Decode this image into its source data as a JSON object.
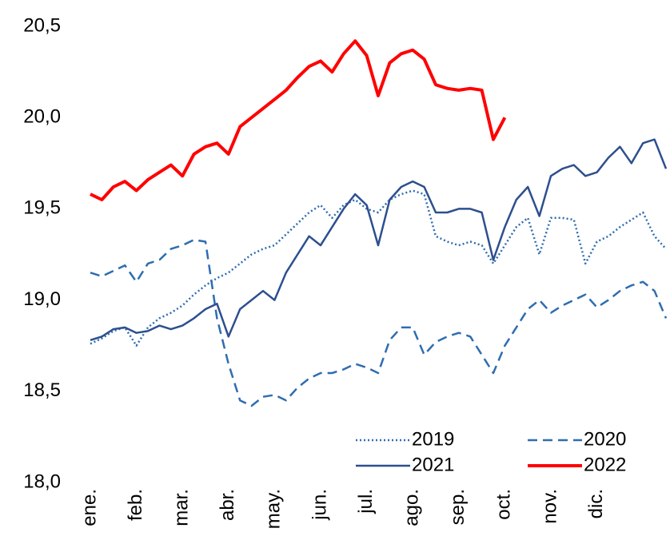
{
  "chart_data": {
    "type": "line",
    "categories": [
      "ene.",
      null,
      null,
      null,
      "feb.",
      null,
      null,
      null,
      "mar.",
      null,
      null,
      null,
      "abr.",
      null,
      null,
      null,
      "may.",
      null,
      null,
      null,
      "jun.",
      null,
      null,
      null,
      "jul.",
      null,
      null,
      null,
      "ago.",
      null,
      null,
      null,
      "sep.",
      null,
      null,
      null,
      "oct.",
      null,
      null,
      null,
      "nov.",
      null,
      null,
      null,
      "dic.",
      null,
      null,
      null,
      null,
      null,
      null
    ],
    "ylim": [
      18.0,
      20.5
    ],
    "yticks": [
      {
        "value": 18.0,
        "label": "18,0"
      },
      {
        "value": 18.5,
        "label": "18,5"
      },
      {
        "value": 19.0,
        "label": "19,0"
      },
      {
        "value": 19.5,
        "label": "19,5"
      },
      {
        "value": 20.0,
        "label": "20,0"
      },
      {
        "value": 20.5,
        "label": "20,5"
      }
    ],
    "series": [
      {
        "name": "2019",
        "color": "#2e6db0",
        "style": "dotted",
        "line_width": 2.5,
        "values": [
          18.76,
          18.79,
          18.83,
          18.85,
          18.75,
          18.85,
          18.9,
          18.93,
          18.97,
          19.03,
          19.08,
          19.12,
          19.15,
          19.2,
          19.25,
          19.28,
          19.3,
          19.36,
          19.42,
          19.48,
          19.52,
          19.45,
          19.52,
          19.55,
          19.5,
          19.48,
          19.55,
          19.58,
          19.6,
          19.58,
          19.35,
          19.32,
          19.3,
          19.32,
          19.3,
          19.2,
          19.3,
          19.4,
          19.45,
          19.25,
          19.45,
          19.45,
          19.44,
          19.2,
          19.32,
          19.35,
          19.4,
          19.44,
          19.48,
          19.35,
          19.28
        ]
      },
      {
        "name": "2020",
        "color": "#2e6db0",
        "style": "dashed",
        "line_width": 2.5,
        "values": [
          19.15,
          19.13,
          19.16,
          19.19,
          19.1,
          19.2,
          19.22,
          19.28,
          19.3,
          19.33,
          19.32,
          18.9,
          18.65,
          18.45,
          18.42,
          18.47,
          18.48,
          18.45,
          18.52,
          18.57,
          18.6,
          18.6,
          18.62,
          18.65,
          18.63,
          18.6,
          18.78,
          18.85,
          18.85,
          18.7,
          18.77,
          18.8,
          18.82,
          18.8,
          18.7,
          18.6,
          18.75,
          18.85,
          18.95,
          19.0,
          18.93,
          18.97,
          19.0,
          19.03,
          18.96,
          19.0,
          19.05,
          19.08,
          19.1,
          19.05,
          18.9
        ]
      },
      {
        "name": "2021",
        "color": "#2d4f8e",
        "style": "solid",
        "line_width": 2.5,
        "values": [
          18.78,
          18.8,
          18.84,
          18.85,
          18.82,
          18.83,
          18.86,
          18.84,
          18.86,
          18.9,
          18.95,
          18.98,
          18.8,
          18.95,
          19.0,
          19.05,
          19.0,
          19.15,
          19.25,
          19.35,
          19.3,
          19.4,
          19.5,
          19.58,
          19.52,
          19.3,
          19.55,
          19.62,
          19.65,
          19.62,
          19.48,
          19.48,
          19.5,
          19.5,
          19.48,
          19.22,
          19.4,
          19.55,
          19.62,
          19.46,
          19.68,
          19.72,
          19.74,
          19.68,
          19.7,
          19.78,
          19.84,
          19.75,
          19.86,
          19.88,
          19.72
        ]
      },
      {
        "name": "2022",
        "color": "#ff0000",
        "style": "solid",
        "line_width": 4,
        "values": [
          19.58,
          19.55,
          19.62,
          19.65,
          19.6,
          19.66,
          19.7,
          19.74,
          19.68,
          19.8,
          19.84,
          19.86,
          19.8,
          19.95,
          20.0,
          20.05,
          20.1,
          20.15,
          20.22,
          20.28,
          20.31,
          20.25,
          20.35,
          20.42,
          20.34,
          20.12,
          20.3,
          20.35,
          20.37,
          20.32,
          20.18,
          20.16,
          20.15,
          20.16,
          20.15,
          19.88,
          20.0,
          null,
          null,
          null,
          null,
          null,
          null,
          null,
          null,
          null,
          null,
          null,
          null,
          null,
          null
        ]
      }
    ]
  }
}
